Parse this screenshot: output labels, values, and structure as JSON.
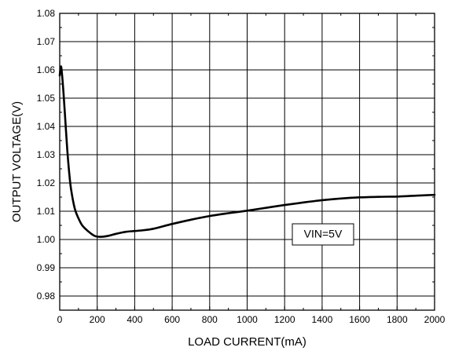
{
  "chart_data": {
    "type": "line",
    "title": "",
    "xlabel": "LOAD CURRENT(mA)",
    "ylabel": "OUTPUT VOLTAGE(V)",
    "xlim": [
      0,
      2000
    ],
    "ylim": [
      0.975,
      1.08
    ],
    "x_ticks": [
      0,
      200,
      400,
      600,
      800,
      1000,
      1200,
      1400,
      1600,
      1800,
      2000
    ],
    "x_tick_labels": [
      "0",
      "200",
      "400",
      "600",
      "800",
      "1000",
      "1200",
      "1400",
      "1600",
      "1800",
      "2000"
    ],
    "y_ticks": [
      0.98,
      0.99,
      1.0,
      1.01,
      1.02,
      1.03,
      1.04,
      1.05,
      1.06,
      1.07,
      1.08
    ],
    "y_tick_labels": [
      "0.98",
      "0.99",
      "1.00",
      "1.01",
      "1.02",
      "1.03",
      "1.04",
      "1.05",
      "1.06",
      "1.07",
      "1.08"
    ],
    "grid": true,
    "annotation": "VIN=5V",
    "series": [
      {
        "x": [
          0,
          5,
          10,
          20,
          30,
          40,
          50,
          60,
          80,
          100,
          120,
          150,
          180,
          200,
          230,
          260,
          300,
          350,
          400,
          450,
          500,
          600,
          700,
          800,
          900,
          1000,
          1100,
          1200,
          1300,
          1400,
          1500,
          1600,
          1700,
          1800,
          1900,
          2000
        ],
        "y": [
          1.058,
          1.061,
          1.06,
          1.052,
          1.042,
          1.032,
          1.024,
          1.018,
          1.011,
          1.0075,
          1.005,
          1.003,
          1.0015,
          1.001,
          1.001,
          1.0013,
          1.002,
          1.0027,
          1.003,
          1.0033,
          1.0038,
          1.0055,
          1.007,
          1.0083,
          1.0093,
          1.0102,
          1.0112,
          1.0122,
          1.0131,
          1.0139,
          1.0145,
          1.0149,
          1.0151,
          1.0152,
          1.0155,
          1.0158
        ]
      }
    ]
  }
}
